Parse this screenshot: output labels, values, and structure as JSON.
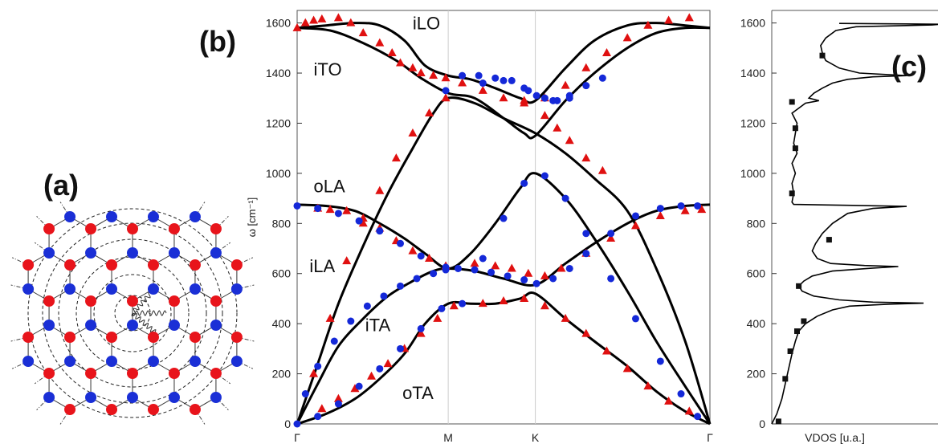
{
  "panels": {
    "a": "(a)",
    "b": "(b)",
    "c": "(c)"
  },
  "colors": {
    "red_atom": "#e8141b",
    "blue_atom": "#1a2fd6",
    "experiment_triangle": "#e01010",
    "calc_circle": "#1428d8",
    "theory_line": "#000000"
  },
  "chart_data": [
    {
      "type": "line",
      "panel": "b",
      "ylabel": "ω [cm⁻¹]",
      "ylim": [
        0,
        1650
      ],
      "yticks": [
        0,
        200,
        400,
        600,
        800,
        1000,
        1200,
        1400,
        1600
      ],
      "xlim": [
        0,
        1
      ],
      "xticks": [
        {
          "label": "Γ",
          "x": 0
        },
        {
          "label": "M",
          "x": 0.366
        },
        {
          "label": "K",
          "x": 0.577
        },
        {
          "label": "Γ",
          "x": 1
        }
      ],
      "branch_labels": [
        {
          "text": "iLO",
          "x": 0.28,
          "y": 1575
        },
        {
          "text": "iTO",
          "x": 0.04,
          "y": 1390
        },
        {
          "text": "oLA",
          "x": 0.04,
          "y": 925
        },
        {
          "text": "iLA",
          "x": 0.03,
          "y": 605
        },
        {
          "text": "iTA",
          "x": 0.165,
          "y": 370
        },
        {
          "text": "oTA",
          "x": 0.255,
          "y": 100
        }
      ],
      "series": [
        {
          "kind": "theory",
          "x": [
            0,
            0.07,
            0.14,
            0.2,
            0.26,
            0.31,
            0.366,
            0.42,
            0.48,
            0.54,
            0.577,
            0.65,
            0.72,
            0.8,
            0.87,
            0.94,
            1
          ],
          "y": [
            1580,
            1590,
            1600,
            1590,
            1530,
            1430,
            1390,
            1375,
            1340,
            1300,
            1290,
            1420,
            1530,
            1590,
            1600,
            1590,
            1580
          ]
        },
        {
          "kind": "theory",
          "x": [
            0,
            0.08,
            0.16,
            0.24,
            0.3,
            0.366,
            0.43,
            0.5,
            0.55,
            0.577,
            0.65,
            0.72,
            0.8,
            0.87,
            0.94,
            1
          ],
          "y": [
            1580,
            1570,
            1520,
            1450,
            1380,
            1320,
            1300,
            1220,
            1160,
            1150,
            1290,
            1400,
            1500,
            1560,
            1580,
            1580
          ]
        },
        {
          "kind": "theory",
          "x": [
            0,
            0.05,
            0.1,
            0.16,
            0.22,
            0.28,
            0.33,
            0.366,
            0.43,
            0.5,
            0.577,
            0.65,
            0.72,
            0.8,
            0.87,
            0.94,
            1
          ],
          "y": [
            0,
            240,
            480,
            710,
            920,
            1100,
            1240,
            1300,
            1280,
            1220,
            1160,
            1080,
            980,
            850,
            620,
            330,
            0
          ]
        },
        {
          "kind": "theory",
          "x": [
            0,
            0.05,
            0.1,
            0.16,
            0.22,
            0.28,
            0.33,
            0.366,
            0.43,
            0.5,
            0.577,
            0.65,
            0.72,
            0.8,
            0.87,
            0.94,
            1
          ],
          "y": [
            0,
            160,
            310,
            420,
            510,
            570,
            610,
            620,
            610,
            580,
            555,
            640,
            720,
            800,
            850,
            870,
            875
          ]
        },
        {
          "kind": "theory",
          "x": [
            0,
            0.07,
            0.14,
            0.2,
            0.26,
            0.31,
            0.366,
            0.42,
            0.48,
            0.54,
            0.577,
            0.65,
            0.72,
            0.8,
            0.87,
            0.94,
            1
          ],
          "y": [
            875,
            870,
            850,
            800,
            740,
            680,
            620,
            680,
            800,
            940,
            1000,
            900,
            740,
            530,
            330,
            150,
            0
          ]
        },
        {
          "kind": "theory",
          "x": [
            0,
            0.07,
            0.14,
            0.2,
            0.26,
            0.31,
            0.366,
            0.42,
            0.48,
            0.54,
            0.577,
            0.65,
            0.72,
            0.8,
            0.87,
            0.94,
            1
          ],
          "y": [
            0,
            40,
            100,
            180,
            280,
            400,
            480,
            480,
            480,
            500,
            520,
            420,
            330,
            230,
            130,
            50,
            0
          ]
        },
        {
          "kind": "experiment",
          "x": [
            0,
            0.02,
            0.04,
            0.06,
            0.1,
            0.13,
            0.16,
            0.2,
            0.23,
            0.25,
            0.28,
            0.3,
            0.33,
            0.36,
            0.4,
            0.45,
            0.5,
            0.55,
            0.6,
            0.65,
            0.7,
            0.75,
            0.8,
            0.85,
            0.9,
            0.95
          ],
          "y": [
            1580,
            1600,
            1610,
            1615,
            1620,
            1600,
            1560,
            1520,
            1480,
            1440,
            1420,
            1400,
            1390,
            1380,
            1360,
            1330,
            1300,
            1280,
            1300,
            1350,
            1420,
            1480,
            1540,
            1590,
            1610,
            1620
          ]
        },
        {
          "kind": "experiment",
          "x": [
            0.05,
            0.08,
            0.12,
            0.16,
            0.2,
            0.24,
            0.28,
            0.32,
            0.36,
            0.43,
            0.48,
            0.52,
            0.56,
            0.6,
            0.64,
            0.7,
            0.76,
            0.82,
            0.88,
            0.94,
            0.98
          ],
          "y": [
            860,
            855,
            850,
            820,
            780,
            730,
            690,
            660,
            630,
            640,
            630,
            620,
            600,
            590,
            620,
            680,
            740,
            790,
            830,
            850,
            855
          ]
        },
        {
          "kind": "experiment",
          "x": [
            0.06,
            0.1,
            0.14,
            0.18,
            0.22,
            0.26,
            0.3,
            0.34,
            0.38,
            0.45,
            0.5,
            0.55,
            0.6,
            0.65,
            0.7,
            0.75,
            0.8,
            0.85,
            0.9,
            0.95
          ],
          "y": [
            60,
            100,
            140,
            190,
            240,
            300,
            360,
            420,
            470,
            480,
            490,
            500,
            470,
            420,
            360,
            290,
            220,
            150,
            90,
            50
          ]
        },
        {
          "kind": "experiment",
          "x": [
            0.04,
            0.08,
            0.12,
            0.16,
            0.2,
            0.24,
            0.28,
            0.32,
            0.36,
            0.55,
            0.6,
            0.63,
            0.66,
            0.7,
            0.74
          ],
          "y": [
            200,
            420,
            650,
            800,
            930,
            1060,
            1160,
            1240,
            1300,
            1290,
            1230,
            1180,
            1130,
            1060,
            1010
          ]
        },
        {
          "kind": "calculation",
          "x": [
            0,
            0.02,
            0.05,
            0.09,
            0.13,
            0.17,
            0.21,
            0.25,
            0.29,
            0.33,
            0.36,
            0.39,
            0.43,
            0.47,
            0.51,
            0.55,
            0.58,
            0.62,
            0.66,
            0.7,
            0.76,
            0.82,
            0.88,
            0.93,
            0.97
          ],
          "y": [
            0,
            120,
            230,
            330,
            410,
            470,
            510,
            550,
            580,
            600,
            615,
            620,
            615,
            605,
            590,
            575,
            560,
            580,
            620,
            680,
            760,
            830,
            860,
            870,
            870
          ]
        },
        {
          "kind": "calculation",
          "x": [
            0,
            0.05,
            0.1,
            0.15,
            0.2,
            0.25,
            0.3,
            0.36,
            0.45,
            0.5,
            0.55,
            0.6,
            0.65,
            0.7,
            0.76,
            0.82,
            0.88,
            0.93,
            0.97
          ],
          "y": [
            870,
            860,
            840,
            810,
            770,
            720,
            670,
            625,
            660,
            820,
            960,
            990,
            900,
            760,
            580,
            420,
            250,
            120,
            30
          ]
        },
        {
          "kind": "calculation",
          "x": [
            0.05,
            0.1,
            0.15,
            0.2,
            0.25,
            0.3,
            0.35,
            0.4,
            0.45,
            0.5,
            0.55,
            0.58,
            0.62,
            0.66
          ],
          "y": [
            30,
            80,
            150,
            220,
            300,
            380,
            460,
            480,
            1360,
            1370,
            1340,
            1310,
            1290,
            1300
          ]
        },
        {
          "kind": "calculation",
          "x": [
            0.36,
            0.4,
            0.44,
            0.48,
            0.52,
            0.56,
            0.6,
            0.63,
            0.66,
            0.7,
            0.74
          ],
          "y": [
            1330,
            1390,
            1390,
            1380,
            1370,
            1330,
            1300,
            1290,
            1310,
            1350,
            1380
          ]
        }
      ]
    },
    {
      "type": "line",
      "panel": "c",
      "xlabel": "VDOS [u.a.]",
      "ylim": [
        0,
        1650
      ],
      "yticks": [
        0,
        200,
        400,
        600,
        800,
        1000,
        1200,
        1400,
        1600
      ],
      "curve": {
        "omega": [
          0,
          40,
          100,
          160,
          220,
          280,
          330,
          370,
          400,
          430,
          455,
          470,
          478,
          482,
          486,
          495,
          510,
          530,
          550,
          570,
          590,
          610,
          622,
          628,
          632,
          640,
          660,
          690,
          720,
          760,
          800,
          840,
          860,
          868,
          872,
          876,
          885,
          920,
          960,
          1000,
          1040,
          1080,
          1120,
          1160,
          1200,
          1240,
          1280,
          1290,
          1300,
          1320,
          1340,
          1360,
          1375,
          1385,
          1390,
          1400,
          1420,
          1450,
          1480,
          1510,
          1540,
          1570,
          1585,
          1592,
          1595,
          1598
        ],
        "vdos": [
          0.0,
          0.03,
          0.06,
          0.08,
          0.1,
          0.12,
          0.14,
          0.16,
          0.2,
          0.27,
          0.36,
          0.46,
          0.7,
          0.9,
          0.6,
          0.4,
          0.25,
          0.18,
          0.16,
          0.19,
          0.24,
          0.36,
          0.6,
          0.75,
          0.55,
          0.35,
          0.27,
          0.24,
          0.26,
          0.3,
          0.36,
          0.45,
          0.6,
          0.8,
          0.48,
          0.13,
          0.12,
          0.13,
          0.12,
          0.14,
          0.12,
          0.15,
          0.13,
          0.14,
          0.15,
          0.12,
          0.2,
          0.28,
          0.22,
          0.25,
          0.3,
          0.36,
          0.45,
          0.6,
          0.8,
          0.52,
          0.4,
          0.32,
          0.3,
          0.29,
          0.32,
          0.38,
          0.5,
          0.95,
          1.0,
          0.4
        ]
      },
      "markers": {
        "omega": [
          10,
          180,
          290,
          370,
          410,
          550,
          735,
          920,
          1100,
          1180,
          1285,
          1470
        ],
        "vdos": [
          0.04,
          0.08,
          0.11,
          0.15,
          0.19,
          0.16,
          0.34,
          0.12,
          0.14,
          0.14,
          0.12,
          0.3
        ]
      }
    }
  ]
}
